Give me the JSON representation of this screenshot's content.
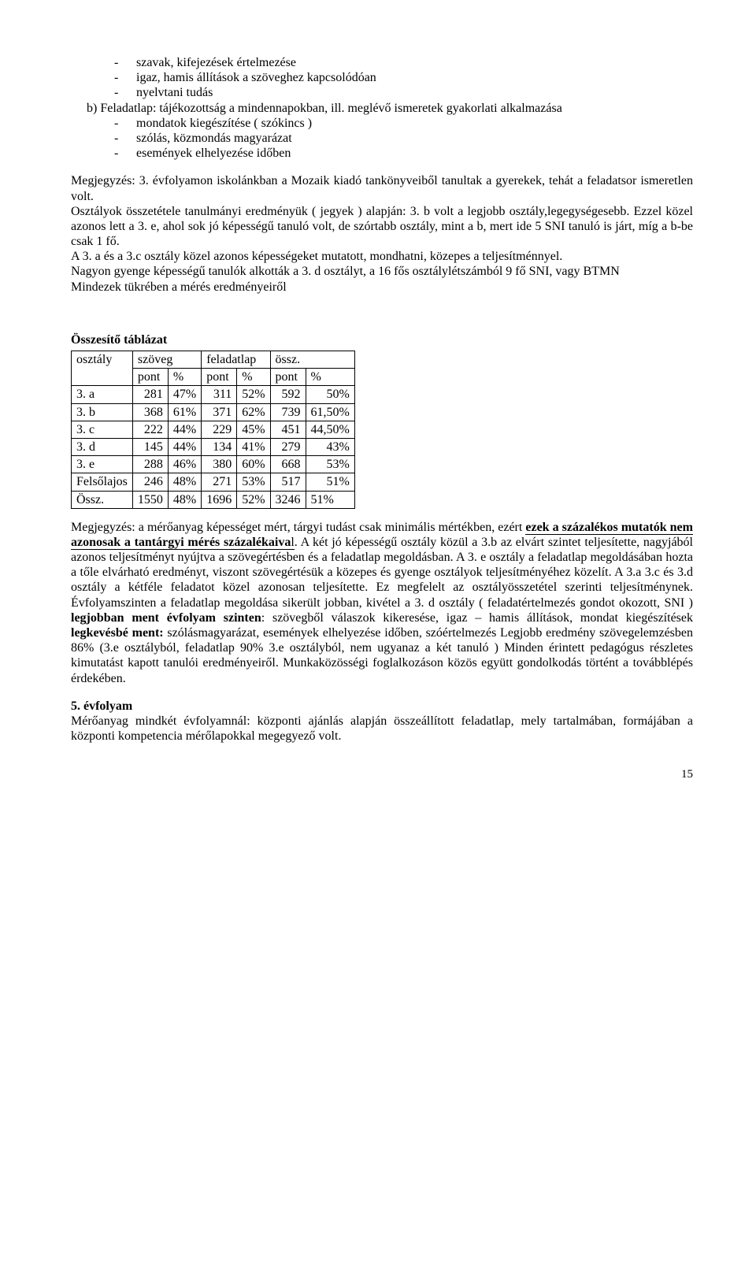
{
  "top_bullets": [
    "szavak, kifejezések értelmezése",
    "igaz, hamis állítások a szöveghez kapcsolódóan",
    "nyelvtani tudás"
  ],
  "line_b": "b) Feladatlap: tájékozottság a mindennapokban, ill. meglévő ismeretek gyakorlati alkalmazása",
  "b_bullets": [
    "mondatok kiegészítése ( szókincs )",
    "szólás, közmondás magyarázat",
    "események elhelyezése időben"
  ],
  "note_para1": "Megjegyzés: 3. évfolyamon iskolánkban a Mozaik kiadó tankönyveiből tanultak a gyerekek, tehát a feladatsor ismeretlen volt.",
  "note_para2_pre": "Osztályok összetétele tanulmányi eredményük  ( jegyek ) alapján: 3. b volt a legjobb osztály,legegységesebb. Ezzel közel azonos lett a 3. e, ahol sok jó képességű tanuló volt, de szórtabb  osztály, mint a b, mert ide 5 SNI tanuló is járt, míg a b-be csak 1 fő.",
  "note_para3": "A 3. a és a 3.c osztály közel azonos képességeket mutatott, mondhatni, közepes  a teljesítménnyel.",
  "note_para4": "Nagyon gyenge képességű tanulók alkották a 3. d osztályt, a 16 fős osztálylétszámból 9 fő SNI, vagy BTMN",
  "note_para5": "Mindezek tükrében a mérés eredményeiről",
  "table_title": "Összesítő táblázat",
  "table": {
    "head_row1": [
      "osztály",
      "szöveg",
      "feladatlap",
      "össz."
    ],
    "head_row2": [
      "pont",
      "%",
      "pont",
      "%",
      "pont",
      "%"
    ],
    "rows": [
      [
        "3. a",
        "281",
        "47%",
        "311",
        "52%",
        "592",
        "50%"
      ],
      [
        "3. b",
        "368",
        "61%",
        "371",
        "62%",
        "739",
        "61,50%"
      ],
      [
        "3. c",
        "222",
        "44%",
        "229",
        "45%",
        "451",
        "44,50%"
      ],
      [
        "3. d",
        "145",
        "44%",
        "134",
        "41%",
        "279",
        "43%"
      ],
      [
        "3. e",
        "288",
        "46%",
        "380",
        "60%",
        "668",
        "53%"
      ],
      [
        "Felsőlajos",
        "246",
        "48%",
        "271",
        "53%",
        "517",
        "51%"
      ],
      [
        "Össz.",
        "1550",
        "48%",
        "1696",
        "52%",
        "3246",
        "51%"
      ]
    ]
  },
  "p_meg_pre": "Megjegyzés: a mérőanyag képességet mért, tárgyi tudást csak minimális mértékben, ezért ",
  "p_meg_bold_ul": "ezek a százalékos mutatók nem azonosak a tantárgyi mérés százalékaiva",
  "p_meg_ul_tail": "l",
  "p_meg_after": ". A két jó képességű osztály közül a 3.b az elvárt szintet teljesítette, nagyjából azonos teljesítményt nyújtva a szövegértésben és a feladatlap megoldásban. A 3. e osztály a feladatlap megoldásában hozta a tőle elvárható eredményt,  viszont szövegértésük a közepes és gyenge osztályok teljesítményéhez közelít. A 3.a  3.c és 3.d osztály a kétféle feladatot  közel azonosan teljesítette. Ez megfelelt az osztályösszetétel szerinti teljesítménynek. Évfolyamszinten a feladatlap megoldása sikerült jobban, kivétel a 3. d osztály ( feladatértelmezés gondot okozott, SNI ) ",
  "p_meg_bold2": "legjobban ment évfolyam szinten",
  "p_meg_after2": ": szövegből válaszok kikeresése, igaz – hamis állítások, mondat kiegészítések ",
  "p_meg_bold3": "legkevésbé ment:",
  "p_meg_after3": " szólásmagyarázat, események elhelyezése időben, szóértelmezés Legjobb eredmény szövegelemzésben 86%  (3.e osztályból, feladatlap 90% 3.e osztályból, nem ugyanaz a két tanuló ) Minden érintett pedagógus részletes kimutatást kapott tanulói eredményeiről. Munkaközösségi foglalkozáson közös együtt gondolkodás történt a továbblépés érdekében.",
  "h5": "5. évfolyam",
  "p5": "Mérőanyag mindkét évfolyamnál: központi ajánlás alapján összeállított feladatlap, mely tartalmában, formájában a központi kompetencia mérőlapokkal megegyező volt.",
  "pagenum": "15"
}
